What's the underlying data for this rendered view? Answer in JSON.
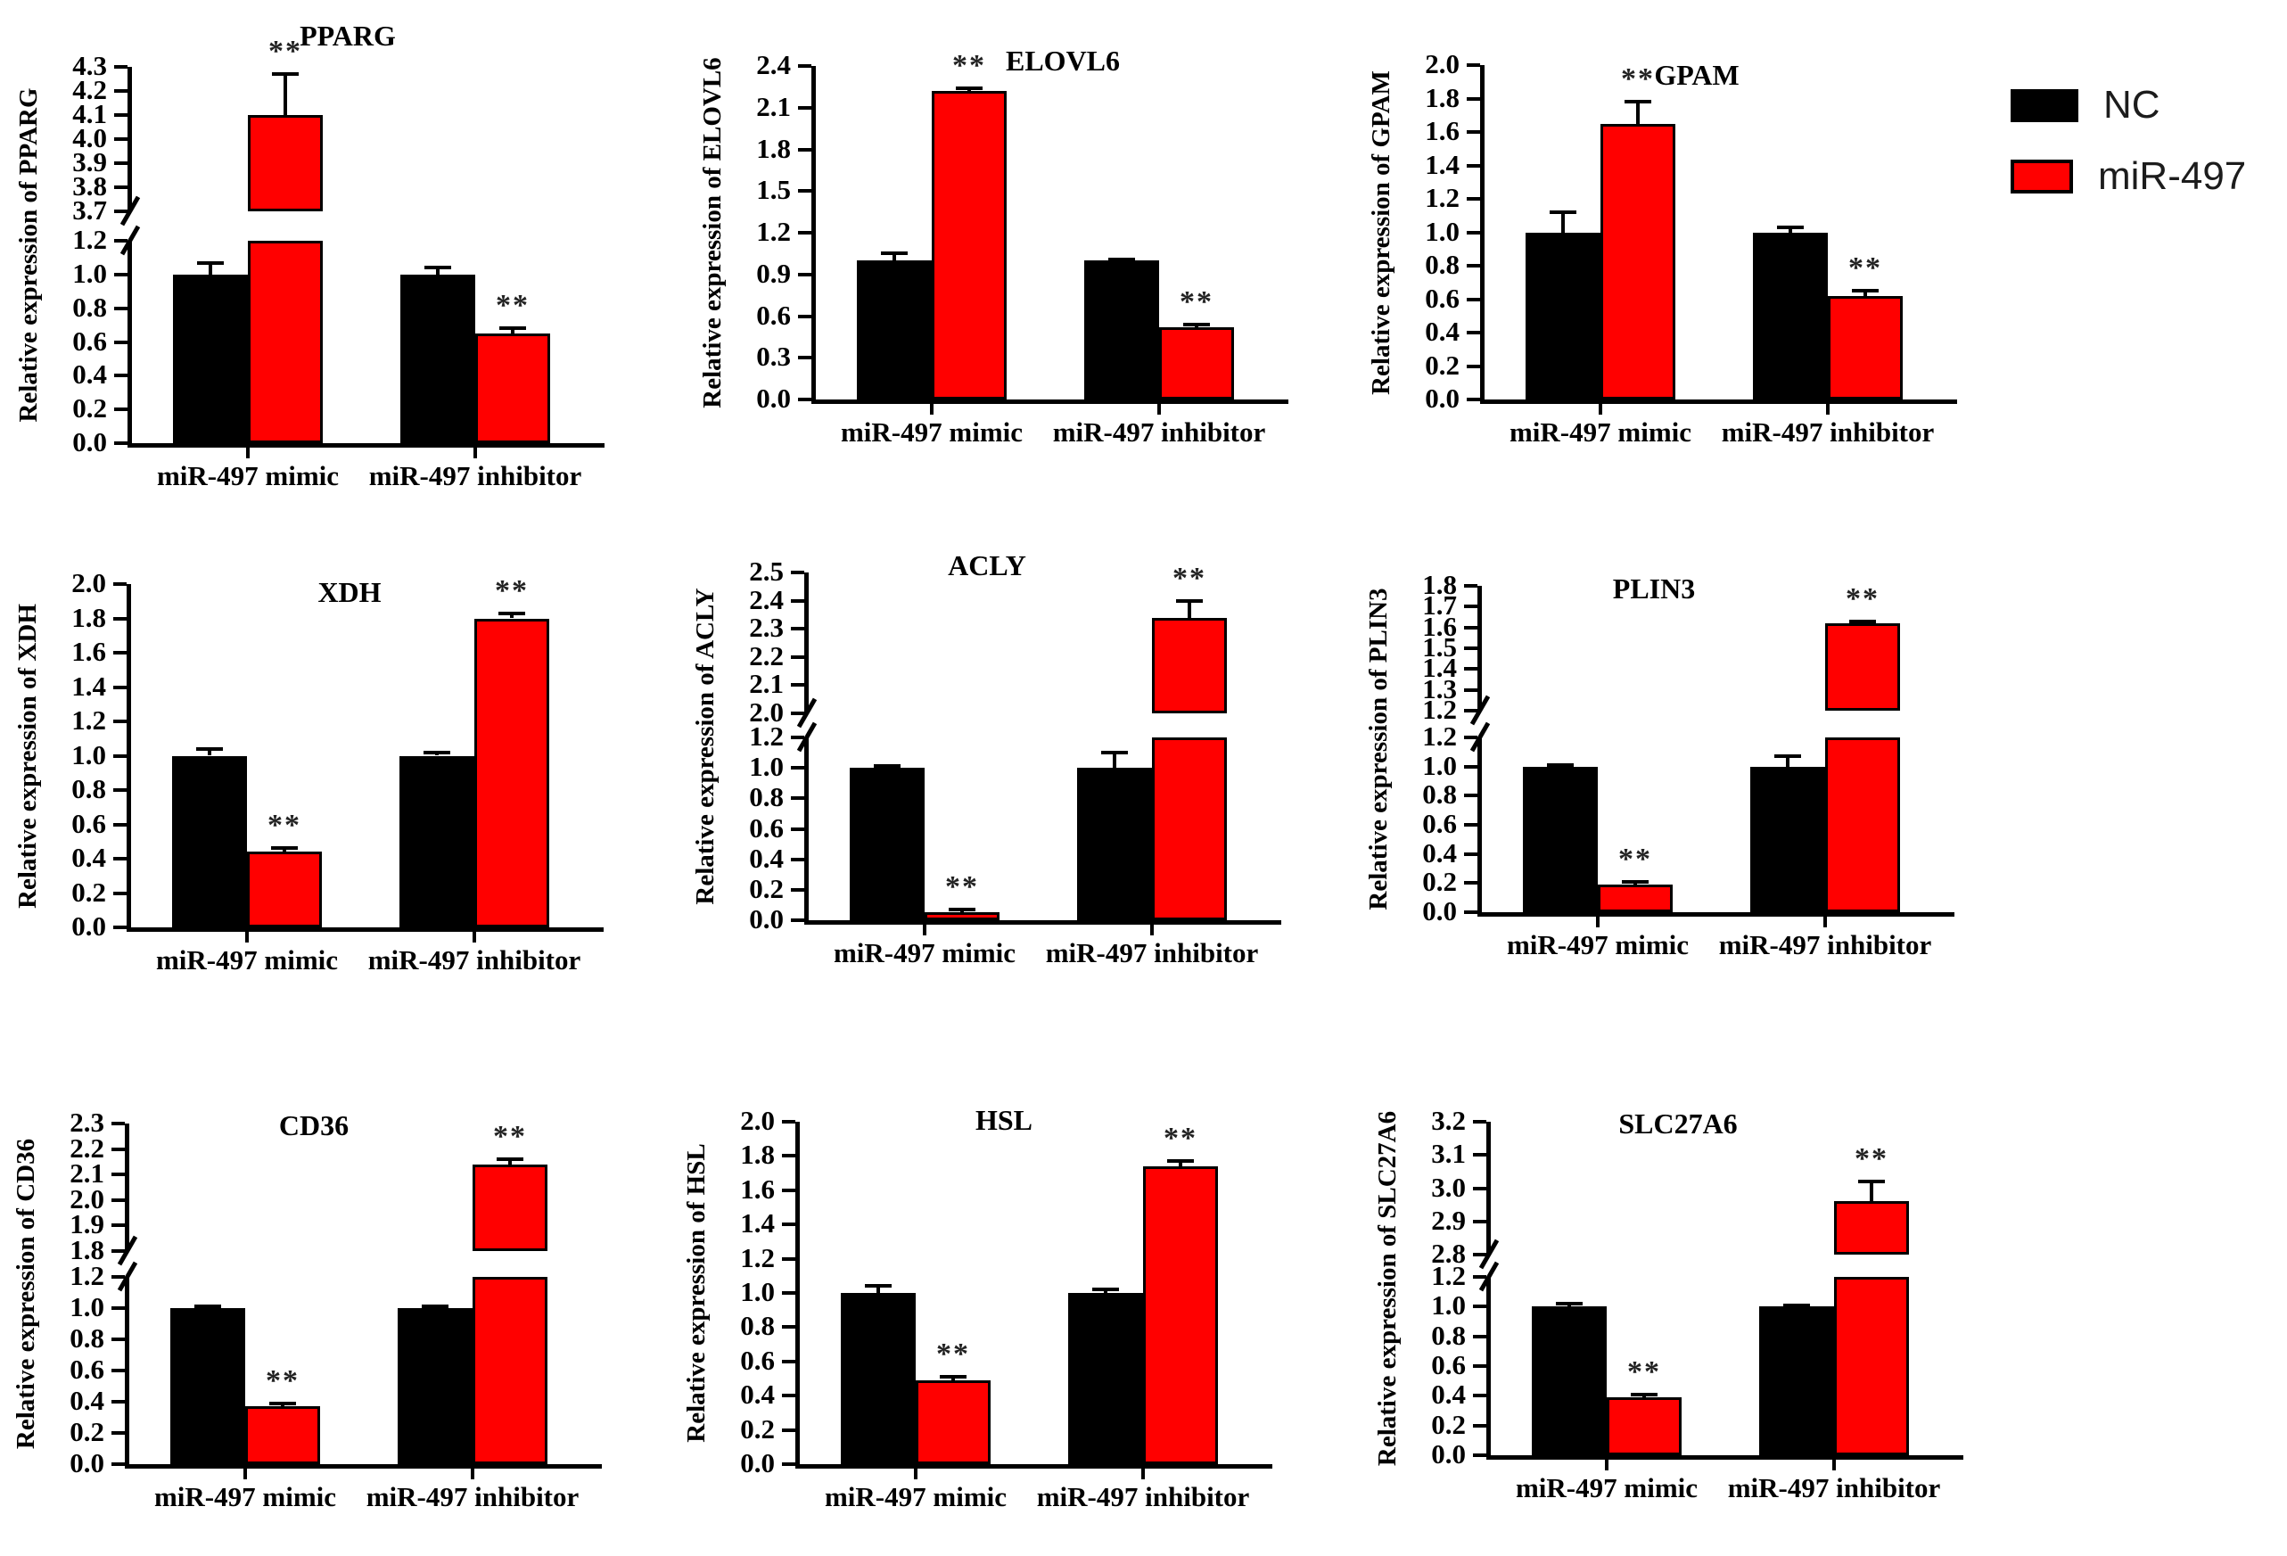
{
  "figure": {
    "legend": {
      "items": [
        {
          "label": "NC",
          "color": "#000000"
        },
        {
          "label": "miR-497",
          "color": "#ff0000"
        }
      ]
    },
    "group_labels": [
      "miR-497 mimic",
      "miR-497 inhibitor"
    ],
    "sig_marker": "**",
    "colors": {
      "nc": "#000000",
      "mir497": "#ff0000",
      "axis": "#000000"
    }
  },
  "chart_data": [
    {
      "type": "bar",
      "title": "PPARG",
      "ylabel": "Relative expression of PPARG",
      "categories": [
        "miR-497 mimic",
        "miR-497 inhibitor"
      ],
      "axis": {
        "broken": true,
        "lower": {
          "min": 0.0,
          "max": 1.2,
          "step": 0.2
        },
        "upper": {
          "min": 3.7,
          "max": 4.3,
          "step": 0.1
        }
      },
      "series": [
        {
          "name": "NC",
          "color": "#000000",
          "values": [
            1.0,
            1.0
          ],
          "errors": [
            0.07,
            0.04
          ],
          "sig": [
            "",
            ""
          ]
        },
        {
          "name": "miR-497",
          "color": "#ff0000",
          "values": [
            4.1,
            0.65
          ],
          "errors": [
            0.17,
            0.03
          ],
          "sig": [
            "**",
            "**"
          ]
        }
      ]
    },
    {
      "type": "bar",
      "title": "ELOVL6",
      "ylabel": "Relative expression of ELOVL6",
      "categories": [
        "miR-497 mimic",
        "miR-497 inhibitor"
      ],
      "axis": {
        "broken": false,
        "lower": {
          "min": 0.0,
          "max": 2.4,
          "step": 0.3
        }
      },
      "series": [
        {
          "name": "NC",
          "color": "#000000",
          "values": [
            1.0,
            1.0
          ],
          "errors": [
            0.05,
            0.01
          ],
          "sig": [
            "",
            ""
          ]
        },
        {
          "name": "miR-497",
          "color": "#ff0000",
          "values": [
            2.22,
            0.52
          ],
          "errors": [
            0.02,
            0.02
          ],
          "sig": [
            "**",
            "**"
          ]
        }
      ]
    },
    {
      "type": "bar",
      "title": "GPAM",
      "ylabel": "Relative expression of GPAM",
      "categories": [
        "miR-497 mimic",
        "miR-497 inhibitor"
      ],
      "axis": {
        "broken": false,
        "lower": {
          "min": 0.0,
          "max": 2.0,
          "step": 0.2
        }
      },
      "series": [
        {
          "name": "NC",
          "color": "#000000",
          "values": [
            1.0,
            1.0
          ],
          "errors": [
            0.12,
            0.03
          ],
          "sig": [
            "",
            ""
          ]
        },
        {
          "name": "miR-497",
          "color": "#ff0000",
          "values": [
            1.65,
            0.62
          ],
          "errors": [
            0.13,
            0.03
          ],
          "sig": [
            "**",
            "**"
          ]
        }
      ]
    },
    {
      "type": "bar",
      "title": "XDH",
      "ylabel": "Relative expression of XDH",
      "categories": [
        "miR-497 mimic",
        "miR-497 inhibitor"
      ],
      "axis": {
        "broken": false,
        "lower": {
          "min": 0.0,
          "max": 2.0,
          "step": 0.2
        }
      },
      "series": [
        {
          "name": "NC",
          "color": "#000000",
          "values": [
            1.0,
            1.0
          ],
          "errors": [
            0.04,
            0.02
          ],
          "sig": [
            "",
            ""
          ]
        },
        {
          "name": "miR-497",
          "color": "#ff0000",
          "values": [
            0.44,
            1.8
          ],
          "errors": [
            0.02,
            0.03
          ],
          "sig": [
            "**",
            "**"
          ]
        }
      ]
    },
    {
      "type": "bar",
      "title": "ACLY",
      "ylabel": "Relative expression of ACLY",
      "categories": [
        "miR-497 mimic",
        "miR-497 inhibitor"
      ],
      "axis": {
        "broken": true,
        "lower": {
          "min": 0.0,
          "max": 1.2,
          "step": 0.2
        },
        "upper": {
          "min": 2.0,
          "max": 2.5,
          "step": 0.1
        }
      },
      "series": [
        {
          "name": "NC",
          "color": "#000000",
          "values": [
            1.0,
            1.0
          ],
          "errors": [
            0.01,
            0.1
          ],
          "sig": [
            "",
            ""
          ]
        },
        {
          "name": "miR-497",
          "color": "#ff0000",
          "values": [
            0.05,
            2.34
          ],
          "errors": [
            0.02,
            0.06
          ],
          "sig": [
            "**",
            "**"
          ]
        }
      ]
    },
    {
      "type": "bar",
      "title": "PLIN3",
      "ylabel": "Relative expression of PLIN3",
      "categories": [
        "miR-497 mimic",
        "miR-497 inhibitor"
      ],
      "axis": {
        "broken": true,
        "lower": {
          "min": 0.0,
          "max": 1.2,
          "step": 0.2
        },
        "upper": {
          "min": 1.2,
          "max": 1.8,
          "step": 0.1
        }
      },
      "series": [
        {
          "name": "NC",
          "color": "#000000",
          "values": [
            1.0,
            1.0
          ],
          "errors": [
            0.01,
            0.07
          ],
          "sig": [
            "",
            ""
          ]
        },
        {
          "name": "miR-497",
          "color": "#ff0000",
          "values": [
            0.19,
            1.62
          ],
          "errors": [
            0.02,
            0.01
          ],
          "sig": [
            "**",
            "**"
          ]
        }
      ]
    },
    {
      "type": "bar",
      "title": "CD36",
      "ylabel": "Relative expression of CD36",
      "categories": [
        "miR-497 mimic",
        "miR-497 inhibitor"
      ],
      "axis": {
        "broken": true,
        "lower": {
          "min": 0.0,
          "max": 1.2,
          "step": 0.2
        },
        "upper": {
          "min": 1.8,
          "max": 2.3,
          "step": 0.1
        }
      },
      "series": [
        {
          "name": "NC",
          "color": "#000000",
          "values": [
            1.0,
            1.0
          ],
          "errors": [
            0.01,
            0.01
          ],
          "sig": [
            "",
            ""
          ]
        },
        {
          "name": "miR-497",
          "color": "#ff0000",
          "values": [
            0.37,
            2.14
          ],
          "errors": [
            0.02,
            0.02
          ],
          "sig": [
            "**",
            "**"
          ]
        }
      ]
    },
    {
      "type": "bar",
      "title": "HSL",
      "ylabel": "Relative expression of HSL",
      "categories": [
        "miR-497 mimic",
        "miR-497 inhibitor"
      ],
      "axis": {
        "broken": false,
        "lower": {
          "min": 0.0,
          "max": 2.0,
          "step": 0.2
        }
      },
      "series": [
        {
          "name": "NC",
          "color": "#000000",
          "values": [
            1.0,
            1.0
          ],
          "errors": [
            0.04,
            0.02
          ],
          "sig": [
            "",
            ""
          ]
        },
        {
          "name": "miR-497",
          "color": "#ff0000",
          "values": [
            0.49,
            1.74
          ],
          "errors": [
            0.02,
            0.03
          ],
          "sig": [
            "**",
            "**"
          ]
        }
      ]
    },
    {
      "type": "bar",
      "title": "SLC27A6",
      "ylabel": "Relative expression of SLC27A6",
      "categories": [
        "miR-497 mimic",
        "miR-497 inhibitor"
      ],
      "axis": {
        "broken": true,
        "lower": {
          "min": 0.0,
          "max": 1.2,
          "step": 0.2
        },
        "upper": {
          "min": 2.8,
          "max": 3.2,
          "step": 0.1
        }
      },
      "series": [
        {
          "name": "NC",
          "color": "#000000",
          "values": [
            1.0,
            1.0
          ],
          "errors": [
            0.02,
            0.01
          ],
          "sig": [
            "",
            ""
          ]
        },
        {
          "name": "miR-497",
          "color": "#ff0000",
          "values": [
            0.39,
            2.96
          ],
          "errors": [
            0.02,
            0.06
          ],
          "sig": [
            "**",
            "**"
          ]
        }
      ]
    }
  ]
}
